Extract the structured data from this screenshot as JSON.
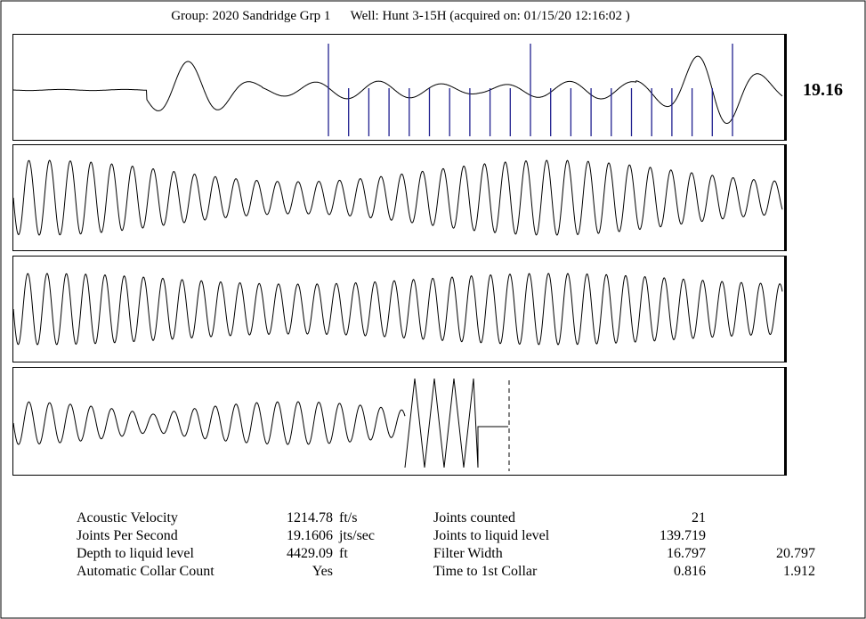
{
  "header": {
    "group": "Group: 2020 Sandridge Grp 1",
    "well": "Well: Hunt 3-15H (acquired on: 01/15/20 12:16:02 )"
  },
  "readout": "19.16",
  "colors": {
    "trace": "#000000",
    "collar_marker": "#1f1f8f",
    "frame": "#000000"
  },
  "chart_data": {
    "type": "line",
    "panels": 4,
    "collar_marker_count": 21,
    "markers_style": "vertical blue lines in top panel marking counted collars",
    "legend": "none",
    "grid": false
  },
  "stats": {
    "left": [
      {
        "label": "Acoustic Velocity",
        "value": "1214.78",
        "unit": "ft/s"
      },
      {
        "label": "Joints Per Second",
        "value": "19.1606",
        "unit": "jts/sec"
      },
      {
        "label": "Depth to liquid level",
        "value": "4429.09",
        "unit": "ft"
      },
      {
        "label": "Automatic Collar Count",
        "value": "Yes",
        "unit": ""
      }
    ],
    "right": [
      {
        "label": "Joints counted",
        "value": "21",
        "value2": ""
      },
      {
        "label": "Joints to liquid level",
        "value": "139.719",
        "value2": ""
      },
      {
        "label": "Filter Width",
        "value": "16.797",
        "value2": "20.797"
      },
      {
        "label": "Time to 1st Collar",
        "value": "0.816",
        "value2": "1.912"
      }
    ]
  }
}
